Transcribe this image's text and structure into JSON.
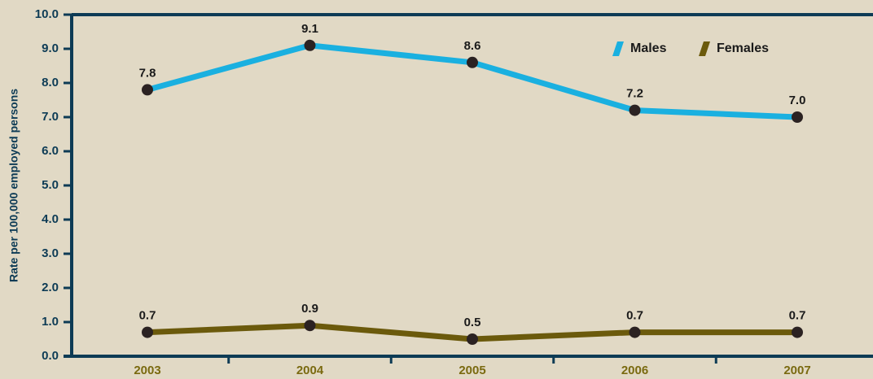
{
  "chart_data": {
    "type": "line",
    "y_label": "Rate per 100,000 employed persons",
    "categories": [
      "2003",
      "2004",
      "2005",
      "2006",
      "2007"
    ],
    "series": [
      {
        "name": "Males",
        "color": "#1ab0e0",
        "values": [
          7.8,
          9.1,
          8.6,
          7.2,
          7.0
        ],
        "value_labels": [
          "7.8",
          "9.1",
          "8.6",
          "7.2",
          "7.0"
        ]
      },
      {
        "name": "Females",
        "color": "#6b5a0c",
        "values": [
          0.7,
          0.9,
          0.5,
          0.7,
          0.7
        ],
        "value_labels": [
          "0.7",
          "0.9",
          "0.5",
          "0.7",
          "0.7"
        ]
      }
    ],
    "ylim": [
      0,
      10
    ],
    "yticks": [
      {
        "value": 0,
        "label": "0.0"
      },
      {
        "value": 1,
        "label": "1.0"
      },
      {
        "value": 2,
        "label": "2.0"
      },
      {
        "value": 3,
        "label": "3.0"
      },
      {
        "value": 4,
        "label": "4.0"
      },
      {
        "value": 5,
        "label": "5.0"
      },
      {
        "value": 6,
        "label": "6.0"
      },
      {
        "value": 7,
        "label": "7.0"
      },
      {
        "value": 8,
        "label": "8.0"
      },
      {
        "value": 9,
        "label": "9.0"
      },
      {
        "value": 10,
        "label": "10.0"
      }
    ],
    "legend": "upper right"
  }
}
